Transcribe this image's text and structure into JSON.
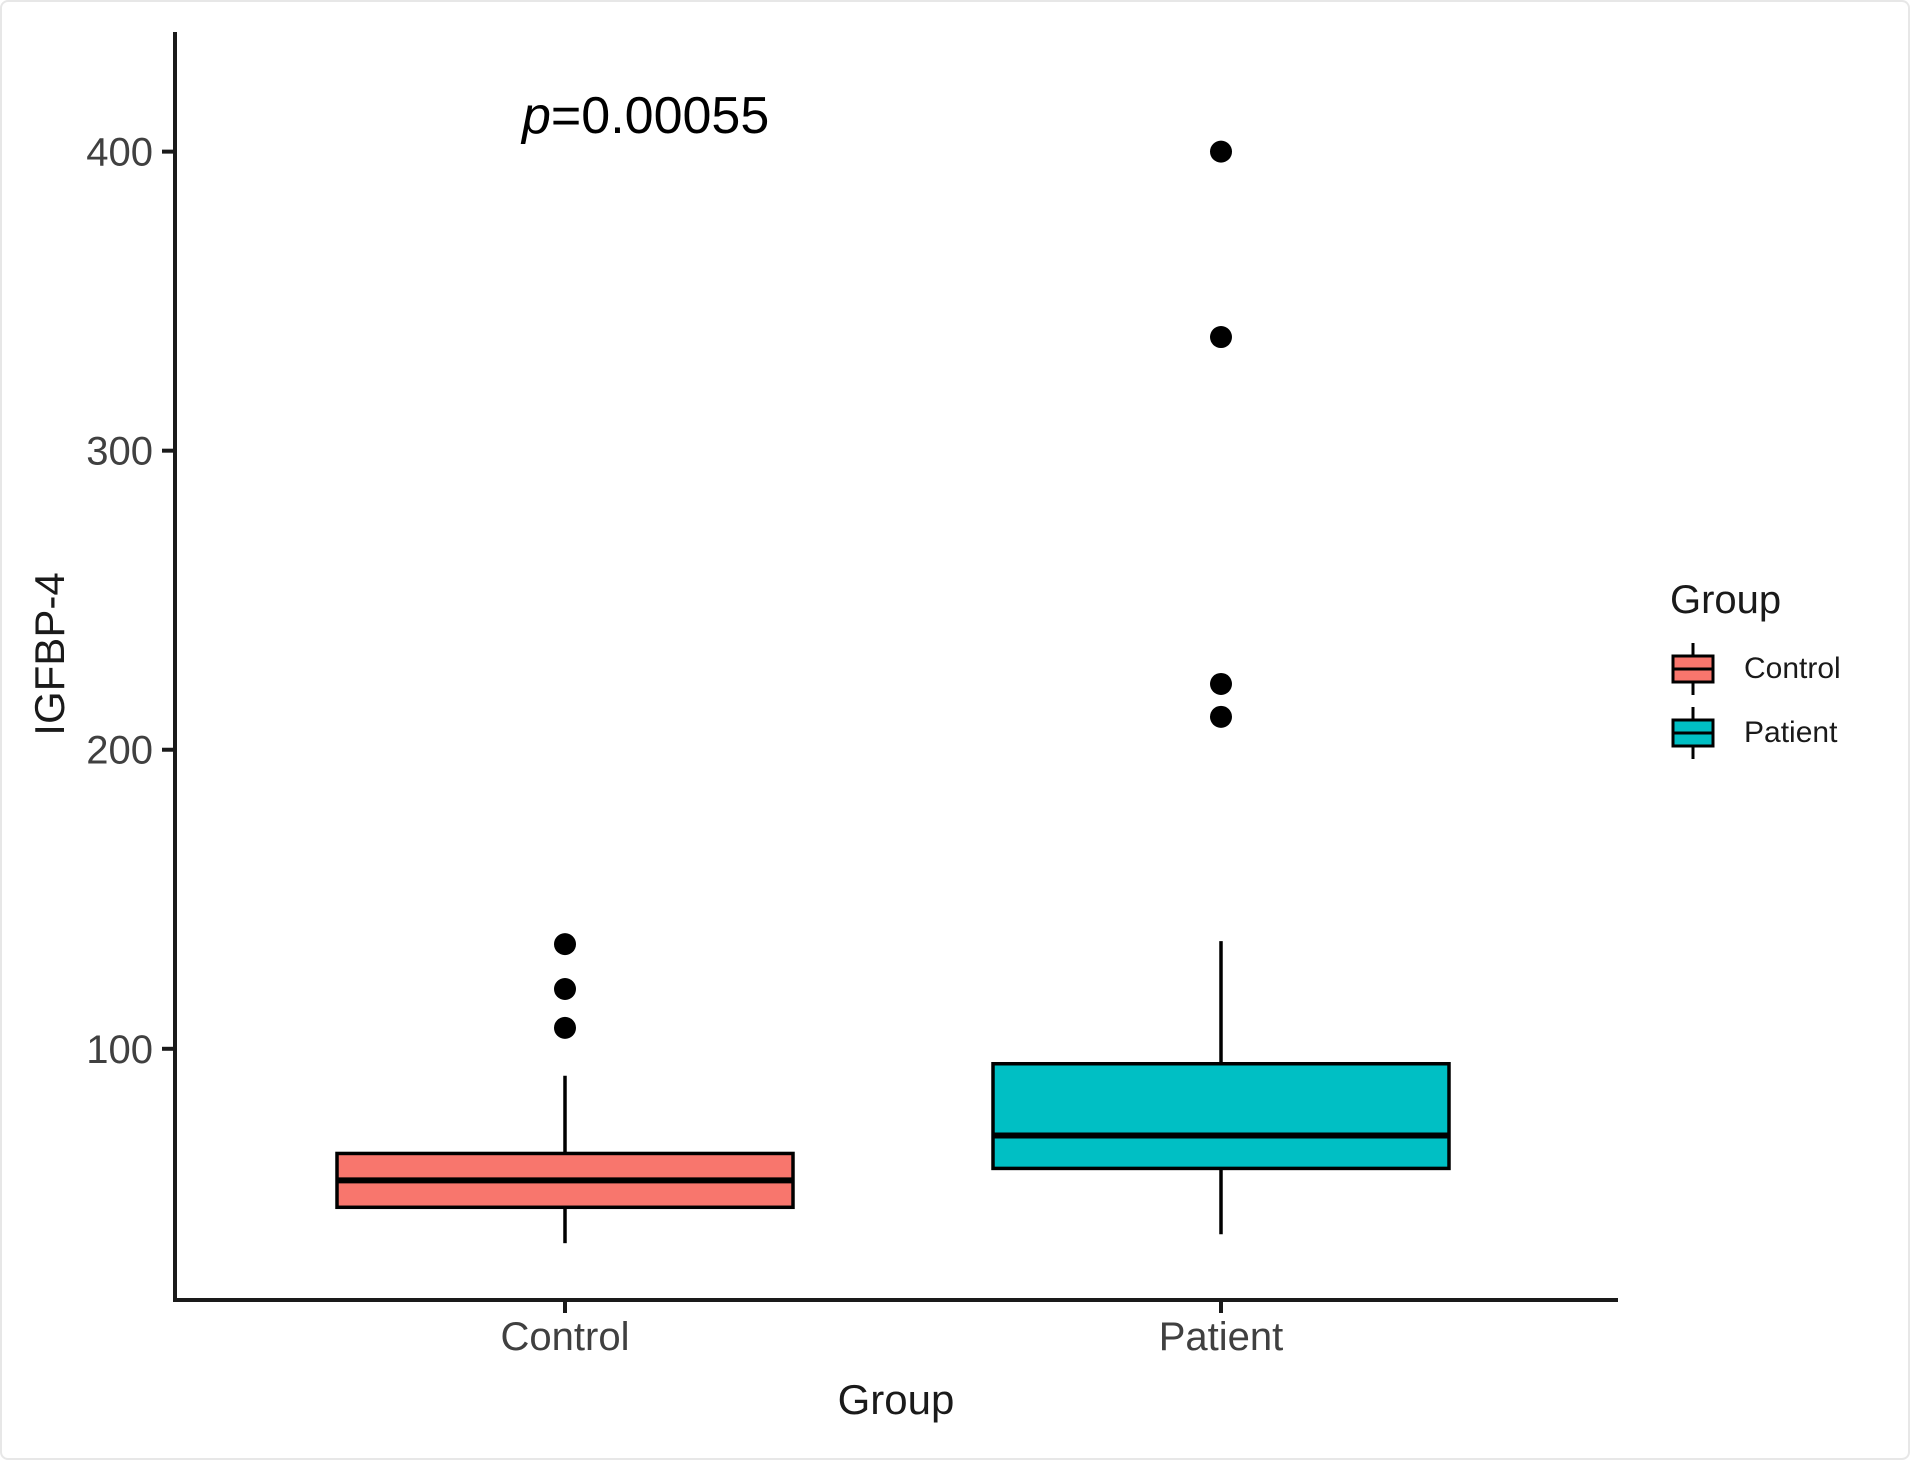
{
  "figure": {
    "background": "#ffffff",
    "border_color": "#e7e7e7"
  },
  "annotation": {
    "symbol": "p",
    "text": "=0.00055",
    "p_value": 0.00055
  },
  "chart_data": {
    "type": "boxplot",
    "title": "",
    "xlabel": "Group",
    "ylabel": "IGFBP-4",
    "categories": [
      "Control",
      "Patient"
    ],
    "y_ticks": [
      100,
      200,
      300,
      400
    ],
    "ylim": [
      16,
      440
    ],
    "grid": false,
    "legend_position": "right",
    "legend": {
      "title": "Group",
      "entries": [
        {
          "label": "Control",
          "color": "#F8766D"
        },
        {
          "label": "Patient",
          "color": "#00BFC4"
        }
      ]
    },
    "series": [
      {
        "name": "Control",
        "color": "#F8766D",
        "whisker_low": 35,
        "q1": 47,
        "median": 56,
        "q3": 65,
        "whisker_high": 91,
        "outliers": [
          107,
          120,
          135
        ]
      },
      {
        "name": "Patient",
        "color": "#00BFC4",
        "whisker_low": 38,
        "q1": 60,
        "median": 71,
        "q3": 95,
        "whisker_high": 136,
        "outliers": [
          211,
          222,
          338,
          400
        ]
      }
    ],
    "axis_color": "#1a1a1a",
    "tick_label_color": "#404040",
    "outlier_color": "#000000"
  }
}
